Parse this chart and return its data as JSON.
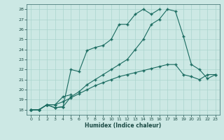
{
  "xlabel": "Humidex (Indice chaleur)",
  "background_color": "#cce8e4",
  "grid_color": "#aad4ce",
  "line_color": "#1a6b60",
  "xlim": [
    -0.5,
    23.5
  ],
  "ylim": [
    17.5,
    28.5
  ],
  "xticks": [
    0,
    1,
    2,
    3,
    4,
    5,
    6,
    7,
    8,
    9,
    10,
    11,
    12,
    13,
    14,
    15,
    16,
    17,
    18,
    19,
    20,
    21,
    22,
    23
  ],
  "yticks": [
    18,
    19,
    20,
    21,
    22,
    23,
    24,
    25,
    26,
    27,
    28
  ],
  "line1_y": [
    18,
    18,
    18.5,
    18.2,
    18.3,
    19.3,
    19.8,
    20.5,
    21.0,
    21.5,
    22.0,
    22.5,
    23.0,
    24.0,
    25.0,
    26.5,
    27.0,
    28.0,
    27.8,
    25.3,
    22.5,
    22.0,
    21.1,
    21.5
  ],
  "line2_y": [
    18,
    18,
    18.5,
    18.2,
    18.3,
    22.0,
    21.8,
    23.9,
    24.2,
    24.4,
    25.0,
    26.5,
    26.5,
    27.5,
    28.0,
    27.5,
    28.0,
    null,
    null,
    null,
    null,
    null,
    null,
    null
  ],
  "line3_y": [
    18,
    18,
    18.5,
    18.5,
    19.3,
    19.5,
    null,
    null,
    null,
    null,
    null,
    null,
    null,
    null,
    null,
    null,
    null,
    null,
    null,
    null,
    null,
    null,
    null,
    null
  ],
  "line4_y": [
    18,
    18,
    18.5,
    18.5,
    18.8,
    19.2,
    19.6,
    20.0,
    20.4,
    20.7,
    21.0,
    21.3,
    21.5,
    21.7,
    21.9,
    22.1,
    22.3,
    22.5,
    22.5,
    21.5,
    21.3,
    21.0,
    21.5,
    21.5
  ]
}
